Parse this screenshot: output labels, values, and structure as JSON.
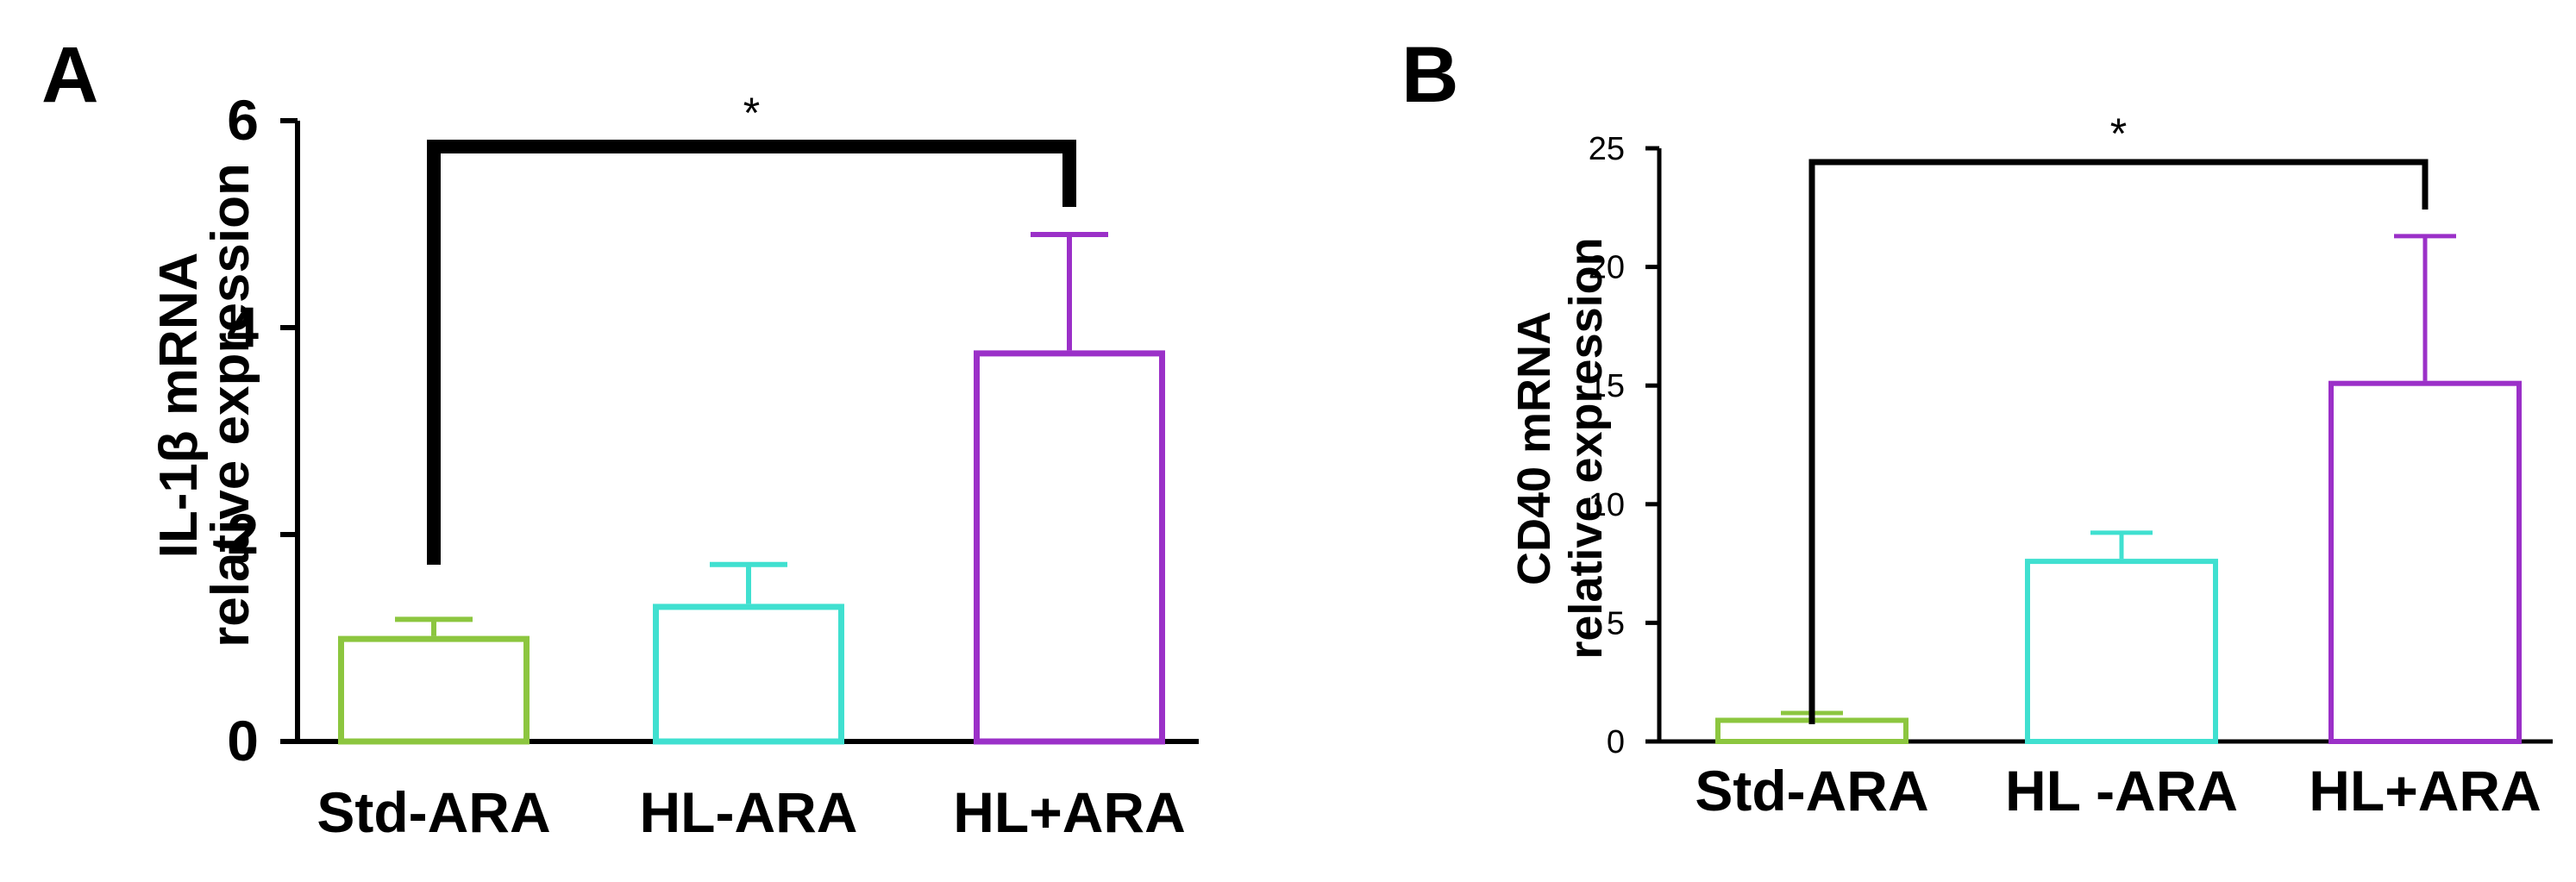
{
  "chart_data": [
    {
      "panel": "A",
      "type": "bar",
      "categories": [
        "Std-ARA",
        "HL-ARA",
        "HL+ARA"
      ],
      "values": [
        1.02,
        1.33,
        3.78
      ],
      "errors": [
        0.16,
        0.38,
        1.12
      ],
      "colors": [
        "#8CC63F",
        "#40E0D0",
        "#9B30C8"
      ],
      "ylabel_line1": "IL-1β mRNA",
      "ylabel_line2": "relative expression",
      "ylim": [
        0,
        6
      ],
      "yticks": [
        "0",
        "2",
        "4",
        "6"
      ],
      "significance": {
        "from": 0,
        "to": 2,
        "label": "*"
      }
    },
    {
      "panel": "B",
      "type": "bar",
      "categories": [
        "Std-ARA",
        "HL -ARA",
        "HL+ARA"
      ],
      "values": [
        1.0,
        7.7,
        15.2
      ],
      "errors": [
        0.2,
        1.1,
        6.1
      ],
      "colors": [
        "#8CC63F",
        "#40E0D0",
        "#9B30C8"
      ],
      "ylabel_line1": "CD40 mRNA",
      "ylabel_line2": "relative expression",
      "ylim": [
        0,
        25
      ],
      "yticks": [
        "0",
        "5",
        "10",
        "15",
        "20",
        "25"
      ],
      "significance": {
        "from": 0,
        "to": 2,
        "label": "*"
      }
    }
  ]
}
